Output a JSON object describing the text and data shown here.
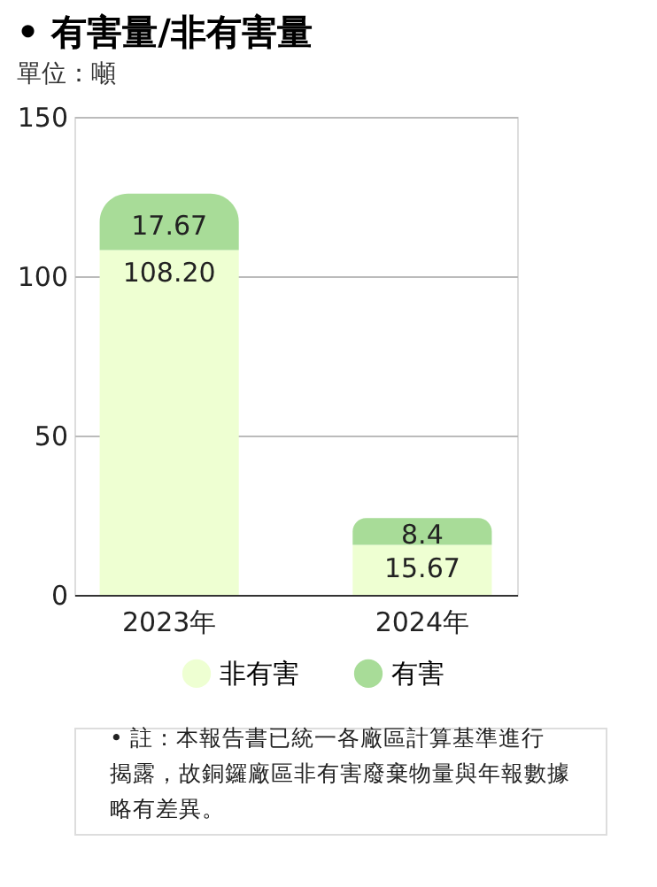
{
  "chart_data": {
    "type": "bar",
    "title": "• 有害量/非有害量",
    "subtitle": "單位：噸",
    "categories": [
      "2023年",
      "2024年"
    ],
    "stacked": true,
    "series": [
      {
        "name": "非有害",
        "color": "#eeffd2",
        "values": [
          108.2,
          15.67
        ],
        "value_labels": [
          "108.20",
          "15.67"
        ]
      },
      {
        "name": "有害",
        "color": "#a8dc98",
        "values": [
          17.67,
          8.4
        ],
        "value_labels": [
          "17.67",
          "8.4"
        ]
      }
    ],
    "ylim": [
      0,
      150
    ],
    "yticks": [
      0,
      50,
      100,
      150
    ],
    "grid": "y",
    "legend": "bottom",
    "annotations": [
      "• 註：本報告書已統一各廠區計算基準進行揭露，故銅鑼廠區非有害廢棄物量與年報數據略有差異。"
    ]
  }
}
